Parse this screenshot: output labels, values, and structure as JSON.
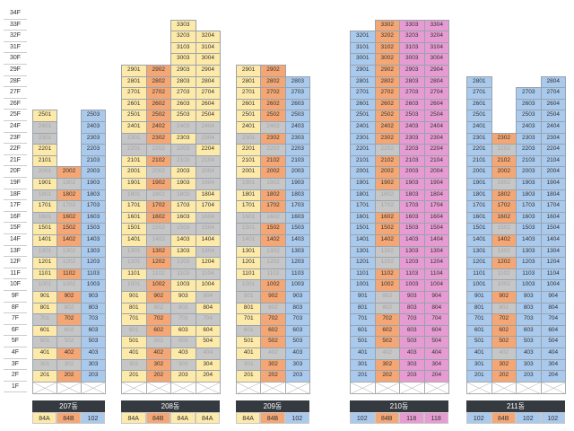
{
  "floors": [
    "34F",
    "33F",
    "32F",
    "31F",
    "30F",
    "29F",
    "28F",
    "27F",
    "26F",
    "25F",
    "24F",
    "23F",
    "22F",
    "21F",
    "20F",
    "19F",
    "18F",
    "17F",
    "16F",
    "15F",
    "14F",
    "13F",
    "12F",
    "11F",
    "10F",
    "9F",
    "8F",
    "7F",
    "6F",
    "5F",
    "4F",
    "3F",
    "2F",
    "1F"
  ],
  "type_colors": {
    "84A": "#fde9a8",
    "84B": "#f4a774",
    "102": "#a9c9ed",
    "118": "#e69bd2"
  },
  "buildings": [
    {
      "name": "207동",
      "types": [
        "84A",
        "84B",
        "102"
      ],
      "top_floor": 25,
      "rows": [
        "1-1",
        "0-1",
        "0-1",
        "1-1",
        "1-1",
        "011",
        "101",
        "011",
        "101",
        "011",
        "111",
        "111",
        "001",
        "101",
        "111",
        "001",
        "111",
        "101",
        "011",
        "101",
        "001",
        "111",
        "001",
        "111"
      ]
    },
    {
      "name": "208동",
      "types": [
        "84A",
        "84B",
        "84A",
        "84A"
      ],
      "top_floor": 33,
      "rows": [
        "--1-",
        "--11",
        "--11",
        "--11",
        "1111",
        "1111",
        "1111",
        "1111",
        "1111",
        "1100",
        "0110",
        "0001",
        "1100",
        "1010",
        "1110",
        "0001",
        "1111",
        "1110",
        "1000",
        "1011",
        "0110",
        "0101",
        "1000",
        "0111",
        "1110",
        "1001",
        "1100",
        "0111",
        "1001",
        "1110",
        "0101",
        "1111"
      ]
    },
    {
      "name": "209동",
      "types": [
        "84A",
        "84B",
        "102"
      ],
      "top_floor": 29,
      "rows": [
        "11-",
        "111",
        "111",
        "111",
        "111",
        "101",
        "011",
        "101",
        "111",
        "111",
        "001",
        "111",
        "111",
        "001",
        "011",
        "011",
        "101",
        "101",
        "101",
        "011",
        "011",
        "101",
        "111",
        "011",
        "111",
        "101",
        "011",
        "111"
      ]
    },
    {
      "name": "210동",
      "types": [
        "102",
        "84B",
        "118",
        "118"
      ],
      "top_floor": 33,
      "rows": [
        "-111",
        "1111",
        "1111",
        "1111",
        "1111",
        "1111",
        "1111",
        "1111",
        "1111",
        "1111",
        "1111",
        "1011",
        "1111",
        "1111",
        "1111",
        "1011",
        "1011",
        "1111",
        "1111",
        "1111",
        "1011",
        "1011",
        "1111",
        "1111",
        "1011",
        "1011",
        "1111",
        "1111",
        "1111",
        "1011",
        "1111",
        "1111"
      ]
    },
    {
      "name": "211동",
      "types": [
        "102",
        "84B",
        "102",
        "102"
      ],
      "top_floor": 28,
      "rows": [
        "1--1",
        "1-11",
        "1-11",
        "1-11",
        "1-11",
        "1111",
        "1011",
        "1111",
        "1111",
        "1011",
        "1111",
        "1111",
        "1111",
        "1011",
        "1111",
        "1011",
        "1111",
        "1011",
        "1011",
        "1111",
        "1011",
        "1111",
        "1111",
        "1111",
        "1011",
        "1111",
        "1111"
      ]
    }
  ]
}
